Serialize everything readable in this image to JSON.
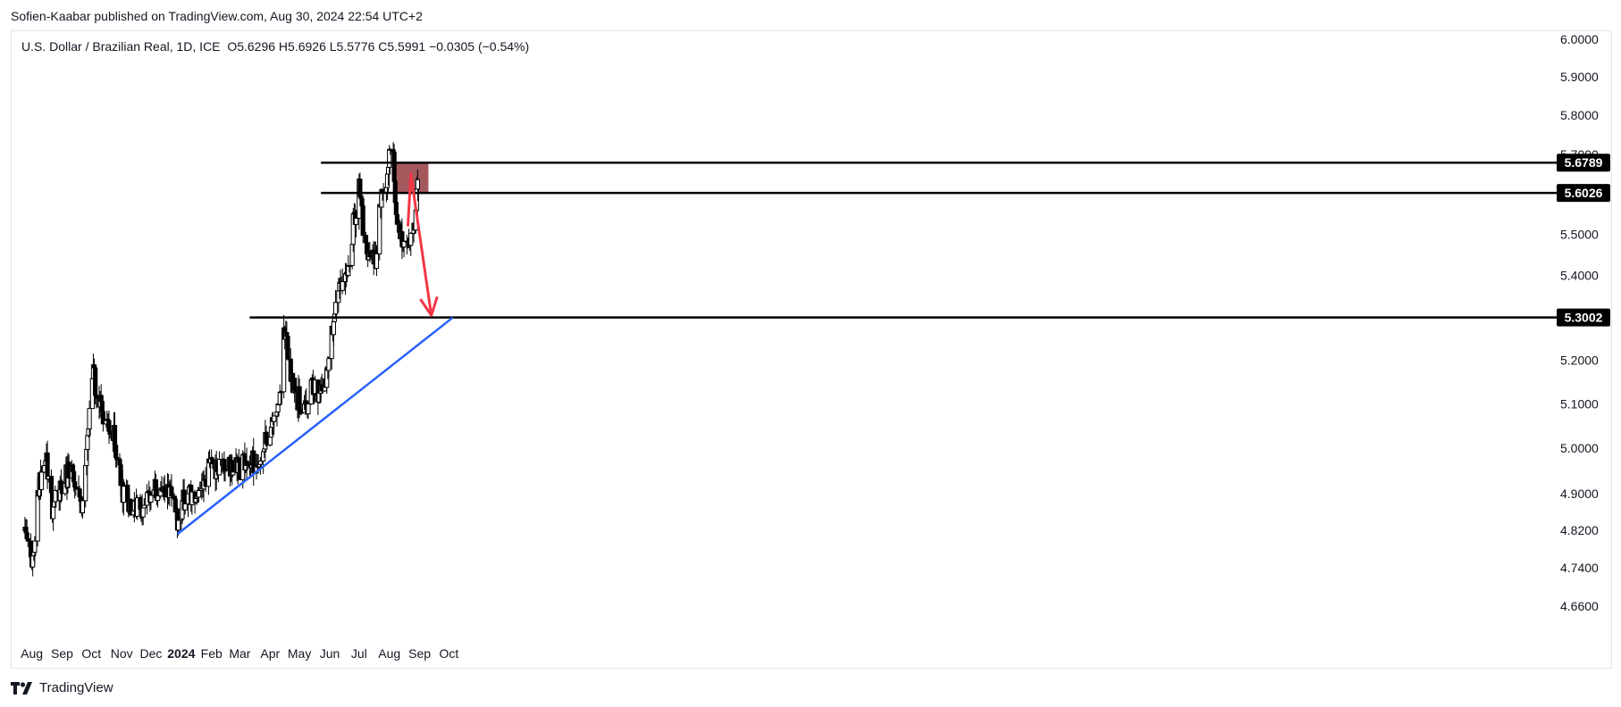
{
  "header": {
    "publisher": "Sofien-Kaabar published on TradingView.com, Aug 30, 2024 22:54 UTC+2"
  },
  "legend": {
    "symbol": "U.S. Dollar / Brazilian Real, 1D, ICE",
    "open": "O5.6296",
    "high": "H5.6926",
    "low": "L5.5776",
    "close": "C5.5991",
    "change": "−0.0305 (−0.54%)"
  },
  "footer": {
    "brand": "TradingView"
  },
  "chart_data": {
    "type": "candlestick",
    "title": "U.S. Dollar / Brazilian Real, 1D, ICE",
    "x_ticks": [
      "Aug",
      "Sep",
      "Oct",
      "Nov",
      "Dec",
      "2024",
      "Feb",
      "Mar",
      "Apr",
      "May",
      "Jun",
      "Jul",
      "Aug",
      "Sep",
      "Oct"
    ],
    "y_ticks": [
      "6.0000",
      "5.9000",
      "5.8000",
      "5.7000",
      "5.6000",
      "5.5000",
      "5.4000",
      "5.3000",
      "5.2000",
      "5.1000",
      "5.0000",
      "4.9000",
      "4.8200",
      "4.7400",
      "4.6600"
    ],
    "y_tick_values": [
      6.0,
      5.9,
      5.8,
      5.7,
      5.6,
      5.5,
      5.4,
      5.3,
      5.2,
      5.1,
      5.0,
      4.9,
      4.82,
      4.74,
      4.66
    ],
    "price_scale": "log",
    "ylim": [
      4.58,
      6.05
    ],
    "anchors": [
      {
        "date": "2023-07-25",
        "price": 4.82
      },
      {
        "date": "2023-08-01",
        "price": 4.73
      },
      {
        "date": "2023-08-08",
        "price": 4.91
      },
      {
        "date": "2023-08-15",
        "price": 4.98
      },
      {
        "date": "2023-08-22",
        "price": 4.87
      },
      {
        "date": "2023-09-01",
        "price": 4.91
      },
      {
        "date": "2023-09-10",
        "price": 4.97
      },
      {
        "date": "2023-09-20",
        "price": 4.86
      },
      {
        "date": "2023-09-28",
        "price": 5.05
      },
      {
        "date": "2023-10-03",
        "price": 5.16
      },
      {
        "date": "2023-10-08",
        "price": 5.13
      },
      {
        "date": "2023-10-15",
        "price": 5.06
      },
      {
        "date": "2023-10-25",
        "price": 5.02
      },
      {
        "date": "2023-10-31",
        "price": 4.92
      },
      {
        "date": "2023-11-08",
        "price": 4.88
      },
      {
        "date": "2023-11-20",
        "price": 4.87
      },
      {
        "date": "2023-12-01",
        "price": 4.91
      },
      {
        "date": "2023-12-10",
        "price": 4.89
      },
      {
        "date": "2023-12-18",
        "price": 4.92
      },
      {
        "date": "2023-12-28",
        "price": 4.84
      },
      {
        "date": "2024-01-05",
        "price": 4.9
      },
      {
        "date": "2024-01-15",
        "price": 4.88
      },
      {
        "date": "2024-01-25",
        "price": 4.94
      },
      {
        "date": "2024-02-05",
        "price": 4.96
      },
      {
        "date": "2024-02-15",
        "price": 4.97
      },
      {
        "date": "2024-03-01",
        "price": 4.96
      },
      {
        "date": "2024-03-10",
        "price": 4.97
      },
      {
        "date": "2024-03-20",
        "price": 4.98
      },
      {
        "date": "2024-03-25",
        "price": 5.0
      },
      {
        "date": "2024-04-02",
        "price": 5.06
      },
      {
        "date": "2024-04-08",
        "price": 5.07
      },
      {
        "date": "2024-04-12",
        "price": 5.14
      },
      {
        "date": "2024-04-16",
        "price": 5.28
      },
      {
        "date": "2024-04-20",
        "price": 5.2
      },
      {
        "date": "2024-04-26",
        "price": 5.12
      },
      {
        "date": "2024-05-03",
        "price": 5.1
      },
      {
        "date": "2024-05-08",
        "price": 5.09
      },
      {
        "date": "2024-05-13",
        "price": 5.15
      },
      {
        "date": "2024-05-20",
        "price": 5.13
      },
      {
        "date": "2024-05-27",
        "price": 5.15
      },
      {
        "date": "2024-06-05",
        "price": 5.28
      },
      {
        "date": "2024-06-12",
        "price": 5.37
      },
      {
        "date": "2024-06-20",
        "price": 5.44
      },
      {
        "date": "2024-06-28",
        "price": 5.57
      },
      {
        "date": "2024-07-01",
        "price": 5.66
      },
      {
        "date": "2024-07-05",
        "price": 5.5
      },
      {
        "date": "2024-07-12",
        "price": 5.43
      },
      {
        "date": "2024-07-18",
        "price": 5.45
      },
      {
        "date": "2024-07-25",
        "price": 5.63
      },
      {
        "date": "2024-07-30",
        "price": 5.65
      },
      {
        "date": "2024-08-02",
        "price": 5.73
      },
      {
        "date": "2024-08-05",
        "price": 5.7
      },
      {
        "date": "2024-08-08",
        "price": 5.55
      },
      {
        "date": "2024-08-12",
        "price": 5.48
      },
      {
        "date": "2024-08-16",
        "price": 5.46
      },
      {
        "date": "2024-08-20",
        "price": 5.48
      },
      {
        "date": "2024-08-23",
        "price": 5.49
      },
      {
        "date": "2024-08-27",
        "price": 5.52
      },
      {
        "date": "2024-08-30",
        "price": 5.64
      }
    ],
    "horizontal_levels": [
      {
        "label": "5.6789",
        "value": 5.6789
      },
      {
        "label": "5.6026",
        "value": 5.6026
      },
      {
        "label": "5.3002",
        "value": 5.3002
      }
    ],
    "resistance_zone": {
      "from": 5.6026,
      "to": 5.6789,
      "start_date": "2024-08-07",
      "end_date": "2024-09-10",
      "color": "#8b2a2f"
    },
    "trendline": {
      "color": "#2962ff",
      "points": [
        {
          "date": "2023-12-28",
          "price": 4.812
        },
        {
          "date": "2024-10-05",
          "price": 5.3
        }
      ]
    },
    "annotation_arrow": {
      "color": "#f23645",
      "points": [
        {
          "date": "2024-08-20",
          "price": 5.52
        },
        {
          "date": "2024-08-23",
          "price": 5.65
        },
        {
          "date": "2024-09-13",
          "price": 5.305
        }
      ]
    },
    "colors": {
      "up": "#ffffff",
      "down": "#000000",
      "wick": "#000000",
      "level_line": "#000000",
      "label_bg": "#000000",
      "label_text": "#ffffff"
    }
  }
}
